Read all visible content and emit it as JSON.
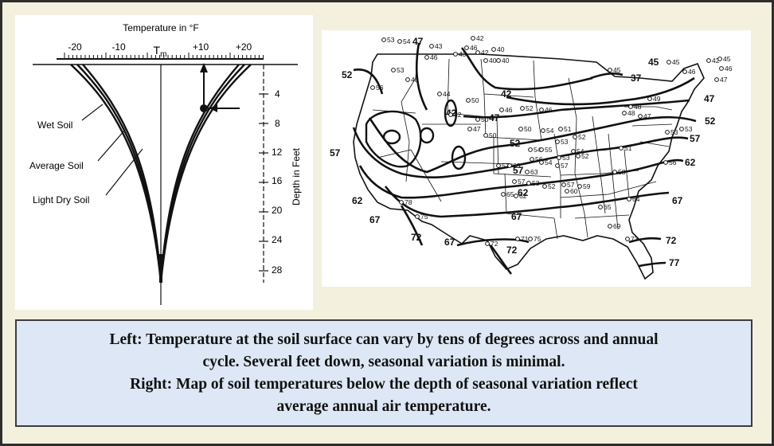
{
  "profile": {
    "top_axis_label": "Temperature in °F",
    "temp_ticks": [
      "-20",
      "-10",
      "T",
      "+10",
      "+20"
    ],
    "tm_subscript": "m",
    "depth_axis_label": "Depth in Feet",
    "depth_ticks": [
      "4",
      "8",
      "12",
      "16",
      "20",
      "24",
      "28"
    ],
    "curve_labels": [
      "Wet Soil",
      "Average Soil",
      "Light Dry Soil"
    ]
  },
  "map": {
    "contours": [
      "52",
      "47",
      "42",
      "37",
      "45",
      "47",
      "52",
      "57",
      "62",
      "67",
      "72",
      "77",
      "47",
      "42",
      "57",
      "62",
      "67",
      "72",
      "67",
      "52",
      "57",
      "62",
      "67",
      "72"
    ],
    "station_values": [
      "53",
      "54",
      "43",
      "46",
      "42",
      "43",
      "46",
      "42",
      "40",
      "40",
      "40",
      "45",
      "45",
      "46",
      "42",
      "45",
      "46",
      "47",
      "53",
      "48",
      "56",
      "44",
      "50",
      "50",
      "42",
      "47",
      "50",
      "46",
      "52",
      "46",
      "48",
      "49",
      "48",
      "47",
      "53",
      "50",
      "54",
      "51",
      "52",
      "53",
      "54",
      "55",
      "54",
      "53",
      "52",
      "51",
      "53",
      "63",
      "57",
      "56",
      "54",
      "57",
      "58",
      "56",
      "57",
      "53",
      "52",
      "62",
      "65",
      "63",
      "57",
      "60",
      "59",
      "64",
      "65",
      "69",
      "73",
      "71",
      "75",
      "78",
      "75",
      "72"
    ]
  },
  "caption": {
    "line1": "Left: Temperature at the soil surface can vary by tens of degrees across and annual",
    "line2": "cycle.  Several feet down, seasonal variation is minimal.",
    "line3": "Right: Map of soil temperatures below the depth of seasonal variation reflect",
    "line4": "average annual air temperature."
  }
}
